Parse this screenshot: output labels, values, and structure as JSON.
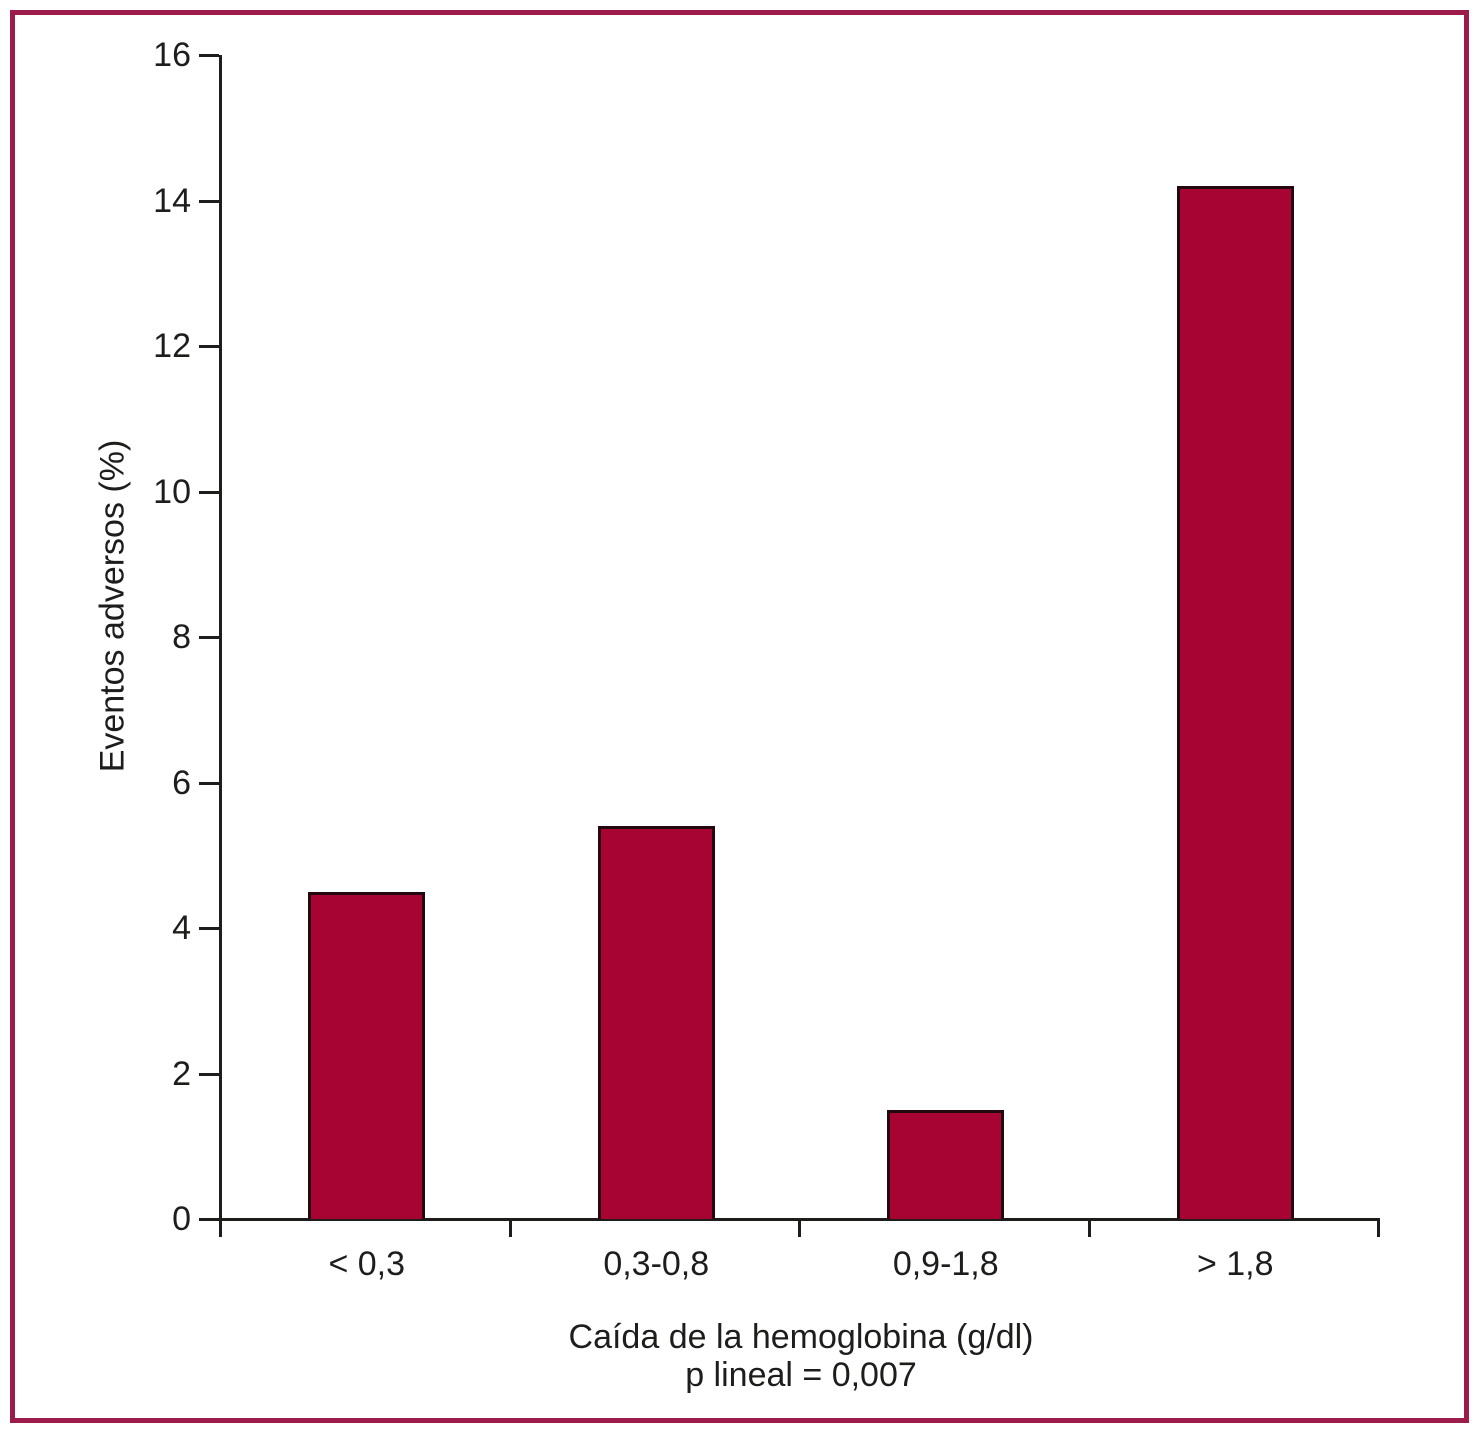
{
  "figure": {
    "background": "#ffffff",
    "frame_color": "#9b1c4b"
  },
  "chart_data": {
    "type": "bar",
    "categories": [
      "< 0,3",
      "0,3-0,8",
      "0,9-1,8",
      "> 1,8"
    ],
    "values": [
      4.5,
      5.4,
      1.5,
      14.2
    ],
    "title": "",
    "xlabel": "Caída de la hemoglobina (g/dl)",
    "annotation": "p lineal = 0,007",
    "ylabel": "Eventos adversos (%)",
    "ylim": [
      0,
      16
    ],
    "yticks": [
      0,
      2,
      4,
      6,
      8,
      10,
      12,
      14,
      16
    ],
    "grid": false,
    "legend": null,
    "bar_color": "#a80433",
    "bar_border_color": "#23090f",
    "axis_color": "#1d1d1b"
  }
}
